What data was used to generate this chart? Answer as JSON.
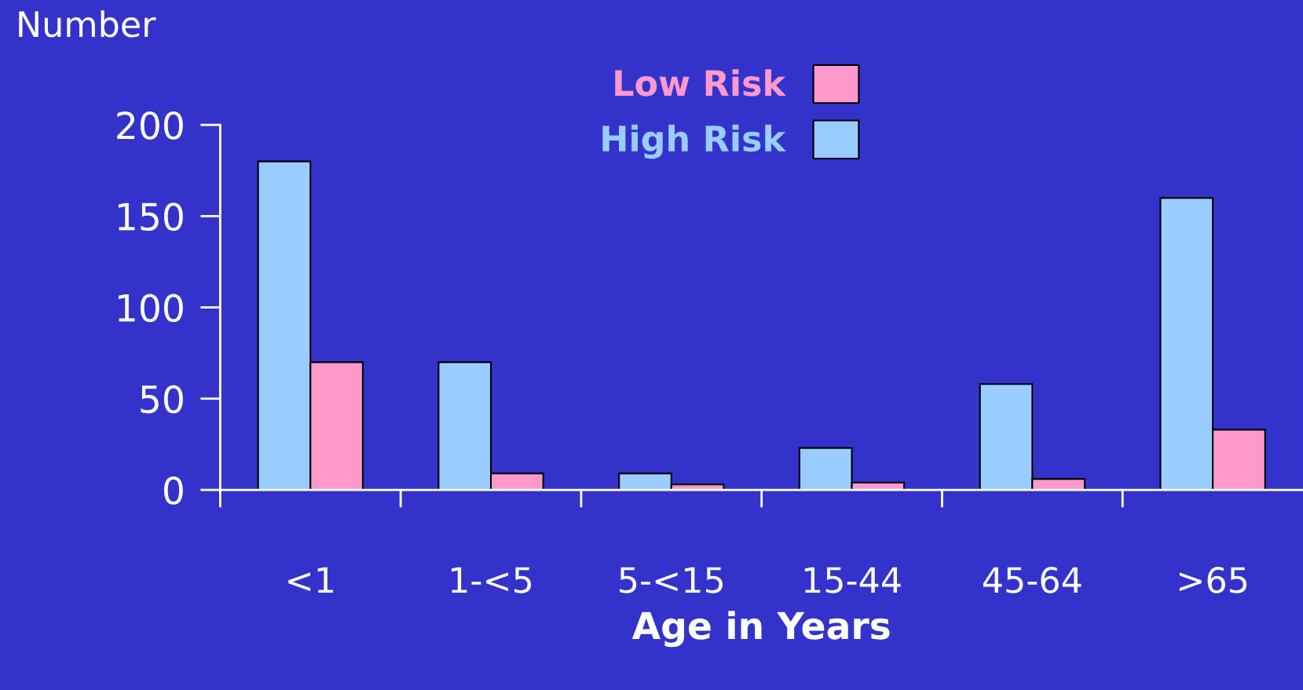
{
  "chart_data": {
    "type": "bar",
    "ylabel": "Number",
    "xlabel": "Age in Years",
    "categories": [
      "<1",
      "1-<5",
      "5-<15",
      "15-44",
      "45-64",
      ">65"
    ],
    "series": [
      {
        "name": "High Risk",
        "color": "#99ccff",
        "values": [
          180,
          70,
          9,
          23,
          58,
          160
        ]
      },
      {
        "name": "Low Risk",
        "color": "#ff99cc",
        "values": [
          70,
          9,
          3,
          4,
          6,
          33
        ]
      }
    ],
    "ylim": [
      0,
      200
    ],
    "yticks": [
      0,
      50,
      100,
      150,
      200
    ],
    "legend": "top"
  }
}
